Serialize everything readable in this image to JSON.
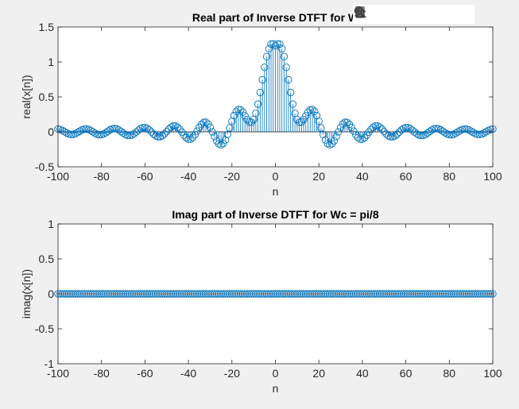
{
  "toolbar": {
    "items": [
      "brush-icon",
      "data-cursor-icon",
      "legend-icon",
      "pan-hand-icon",
      "zoom-in-icon",
      "zoom-out-icon",
      "home-icon"
    ]
  },
  "colors": {
    "series": "#0072bd",
    "axis": "#262626",
    "background": "#f0f0f0",
    "plot_bg": "#ffffff"
  },
  "chart_data": [
    {
      "type": "stem",
      "title": "Real part of Inverse DTFT for W",
      "xlabel": "n",
      "ylabel": "real(x[n])",
      "xlim": [
        -100,
        100
      ],
      "ylim": [
        -0.5,
        1.5
      ],
      "xticks": [
        "-100",
        "-80",
        "-60",
        "-40",
        "-20",
        "0",
        "20",
        "40",
        "60",
        "80",
        "100"
      ],
      "yticks": [
        "-0.5",
        "0",
        "0.5",
        "1",
        "1.5"
      ],
      "series": [
        {
          "x": [
            -100,
            -99,
            -98,
            -97,
            -96,
            -95,
            -94,
            -93,
            -92,
            -91,
            -90,
            -89,
            -88,
            -87,
            -86,
            -85,
            -84,
            -83,
            -82,
            -81,
            -80,
            -79,
            -78,
            -77,
            -76,
            -75,
            -74,
            -73,
            -72,
            -71,
            -70,
            -69,
            -68,
            -67,
            -66,
            -65,
            -64,
            -63,
            -62,
            -61,
            -60,
            -59,
            -58,
            -57,
            -56,
            -55,
            -54,
            -53,
            -52,
            -51,
            -50,
            -49,
            -48,
            -47,
            -46,
            -45,
            -44,
            -43,
            -42,
            -41,
            -40,
            -39,
            -38,
            -37,
            -36,
            -35,
            -34,
            -33,
            -32,
            -31,
            -30,
            -29,
            -28,
            -27,
            -26,
            -25,
            -24,
            -23,
            -22,
            -21,
            -20,
            -19,
            -18,
            -17,
            -16,
            -15,
            -14,
            -13,
            -12,
            -11,
            -10,
            -9,
            -8,
            -7,
            -6,
            -5,
            -4,
            -3,
            -2,
            -1,
            0,
            1,
            2,
            3,
            4,
            5,
            6,
            7,
            8,
            9,
            10,
            11,
            12,
            13,
            14,
            15,
            16,
            17,
            18,
            19,
            20,
            21,
            22,
            23,
            24,
            25,
            26,
            27,
            28,
            29,
            30,
            31,
            32,
            33,
            34,
            35,
            36,
            37,
            38,
            39,
            40,
            41,
            42,
            43,
            44,
            45,
            46,
            47,
            48,
            49,
            50,
            51,
            52,
            53,
            54,
            55,
            56,
            57,
            58,
            59,
            60,
            61,
            62,
            63,
            64,
            65,
            66,
            67,
            68,
            69,
            70,
            71,
            72,
            73,
            74,
            75,
            76,
            77,
            78,
            79,
            80,
            81,
            82,
            83,
            84,
            85,
            86,
            87,
            88,
            89,
            90,
            91,
            92,
            93,
            94,
            95,
            96,
            97,
            98,
            99,
            100
          ],
          "y": [
            0.04,
            0.034,
            0.02,
            0.002,
            -0.016,
            -0.031,
            -0.038,
            -0.037,
            -0.026,
            -0.009,
            0.01,
            0.027,
            0.038,
            0.041,
            0.034,
            0.019,
            0.0,
            -0.02,
            -0.035,
            -0.043,
            -0.041,
            -0.03,
            -0.012,
            0.009,
            0.029,
            0.043,
            0.047,
            0.042,
            0.027,
            0.005,
            -0.018,
            -0.038,
            -0.051,
            -0.053,
            -0.045,
            -0.027,
            -0.003,
            0.023,
            0.046,
            0.059,
            0.061,
            0.049,
            0.027,
            -0.003,
            -0.033,
            -0.058,
            -0.071,
            -0.07,
            -0.056,
            -0.03,
            0.004,
            0.039,
            0.068,
            0.085,
            0.084,
            0.066,
            0.034,
            -0.006,
            -0.049,
            -0.085,
            -0.105,
            -0.105,
            -0.082,
            -0.041,
            0.01,
            0.063,
            0.107,
            0.135,
            0.137,
            0.112,
            0.064,
            0.0,
            -0.068,
            -0.129,
            -0.172,
            -0.186,
            -0.167,
            -0.115,
            -0.038,
            0.055,
            0.15,
            0.232,
            0.292,
            0.32,
            0.315,
            0.281,
            0.229,
            0.176,
            0.14,
            0.137,
            0.176,
            0.264,
            0.397,
            0.563,
            0.745,
            0.923,
            1.076,
            1.189,
            1.255,
            1.258,
            1.233,
            1.258,
            1.255,
            1.189,
            1.076,
            0.923,
            0.745,
            0.563,
            0.397,
            0.264,
            0.176,
            0.137,
            0.14,
            0.176,
            0.229,
            0.281,
            0.315,
            0.32,
            0.292,
            0.232,
            0.15,
            0.055,
            -0.038,
            -0.115,
            -0.167,
            -0.186,
            -0.172,
            -0.129,
            -0.068,
            0.0,
            0.064,
            0.112,
            0.137,
            0.135,
            0.107,
            0.063,
            0.01,
            -0.041,
            -0.082,
            -0.105,
            -0.105,
            -0.085,
            -0.049,
            -0.006,
            0.034,
            0.066,
            0.084,
            0.085,
            0.068,
            0.039,
            0.004,
            -0.03,
            -0.056,
            -0.07,
            -0.071,
            -0.058,
            -0.033,
            -0.003,
            0.027,
            0.049,
            0.061,
            0.059,
            0.046,
            0.023,
            -0.003,
            -0.027,
            -0.045,
            -0.053,
            -0.051,
            -0.038,
            -0.018,
            0.005,
            0.027,
            0.042,
            0.047,
            0.043,
            0.029,
            0.009,
            -0.012,
            -0.03,
            -0.041,
            -0.043,
            -0.035,
            -0.02,
            0.0,
            0.019,
            0.034,
            0.041,
            0.038,
            0.027,
            0.01,
            -0.009,
            -0.026,
            -0.037,
            -0.038,
            -0.031,
            -0.016,
            0.002,
            0.02,
            0.034,
            0.04
          ]
        }
      ]
    },
    {
      "type": "stem",
      "title": "Imag part of Inverse DTFT for Wc = pi/8",
      "xlabel": "n",
      "ylabel": "imag(x[n])",
      "xlim": [
        -100,
        100
      ],
      "ylim": [
        -1,
        1
      ],
      "xticks": [
        "-100",
        "-80",
        "-60",
        "-40",
        "-20",
        "0",
        "20",
        "40",
        "60",
        "80",
        "100"
      ],
      "yticks": [
        "-1",
        "-0.5",
        "0",
        "0.5",
        "1"
      ],
      "series": [
        {
          "x_range": [
            -100,
            100
          ],
          "constant": 0
        }
      ]
    }
  ]
}
